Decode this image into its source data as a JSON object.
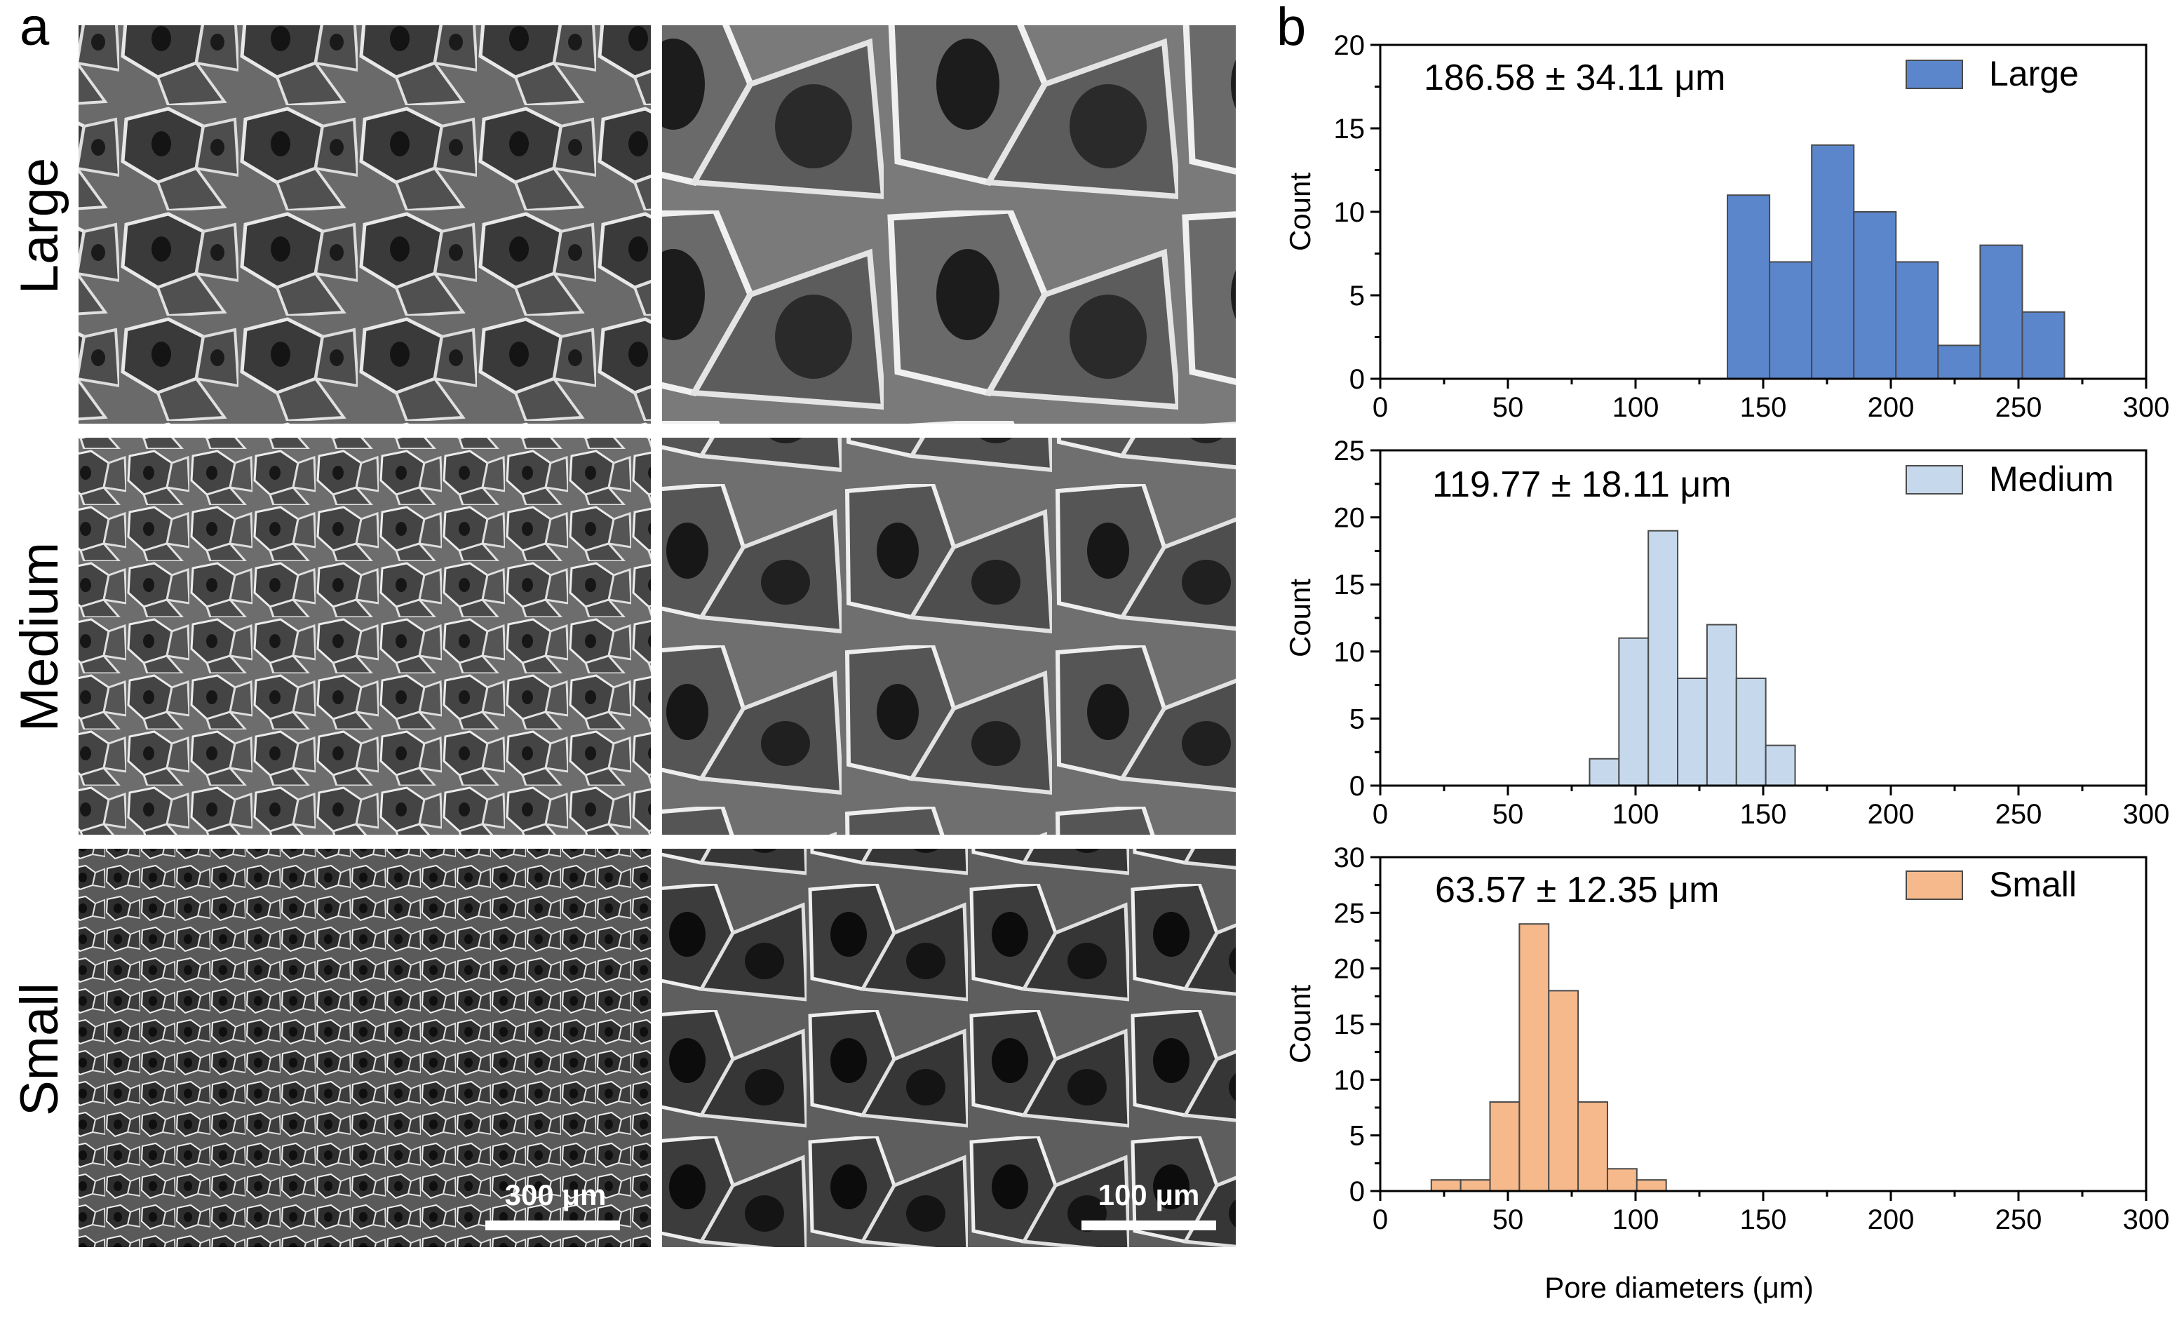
{
  "panels": {
    "a": "a",
    "b": "b"
  },
  "sem": {
    "rows": [
      "Large",
      "Medium",
      "Small"
    ],
    "scale_bars": [
      "300 μm",
      "100 μm"
    ]
  },
  "colors": {
    "large": "#5b86cb",
    "medium": "#c6d8ec",
    "small": "#f5b98c",
    "bar_edge": "#4a4a4a",
    "sem_bg": "#5a5a5a"
  },
  "chart_data": [
    {
      "type": "bar",
      "name": "Large",
      "bin_width": 16.5,
      "bins_start": [
        136,
        152.5,
        169,
        185.5,
        202,
        218.5,
        235,
        251.5
      ],
      "values": [
        11,
        7,
        14,
        10,
        7,
        2,
        8,
        4
      ],
      "xlim": [
        0,
        300
      ],
      "ylim": [
        0,
        20
      ],
      "xticks": [
        "0",
        "50",
        "100",
        "150",
        "200",
        "250",
        "300"
      ],
      "yticks": [
        "0",
        "5",
        "10",
        "15",
        "20"
      ],
      "ylabel": "Count",
      "stat": "186.58 ± 34.11 μm",
      "legend": "Large",
      "color": "#5b86cb"
    },
    {
      "type": "bar",
      "name": "Medium",
      "bin_width": 11.5,
      "bins_start": [
        82,
        93.5,
        105,
        116.5,
        128,
        139.5,
        151
      ],
      "values": [
        2,
        11,
        19,
        8,
        12,
        8,
        3
      ],
      "xlim": [
        0,
        300
      ],
      "ylim": [
        0,
        25
      ],
      "xticks": [
        "0",
        "50",
        "100",
        "150",
        "200",
        "250",
        "300"
      ],
      "yticks": [
        "0",
        "5",
        "10",
        "15",
        "20",
        "25"
      ],
      "ylabel": "Count",
      "stat": "119.77 ± 18.11 μm",
      "legend": "Medium",
      "color": "#c6d8ec"
    },
    {
      "type": "bar",
      "name": "Small",
      "bin_width": 11.5,
      "bins_start": [
        20,
        31.5,
        43,
        54.5,
        66,
        77.5,
        89,
        100.5
      ],
      "values": [
        1,
        1,
        8,
        24,
        18,
        8,
        2,
        1
      ],
      "xlim": [
        0,
        300
      ],
      "ylim": [
        0,
        30
      ],
      "xticks": [
        "0",
        "50",
        "100",
        "150",
        "200",
        "250",
        "300"
      ],
      "yticks": [
        "0",
        "5",
        "10",
        "15",
        "20",
        "25",
        "30"
      ],
      "ylabel": "Count",
      "xlabel": "Pore diameters (μm)",
      "stat": "63.57 ± 12.35 μm",
      "legend": "Small",
      "color": "#f5b98c"
    }
  ]
}
